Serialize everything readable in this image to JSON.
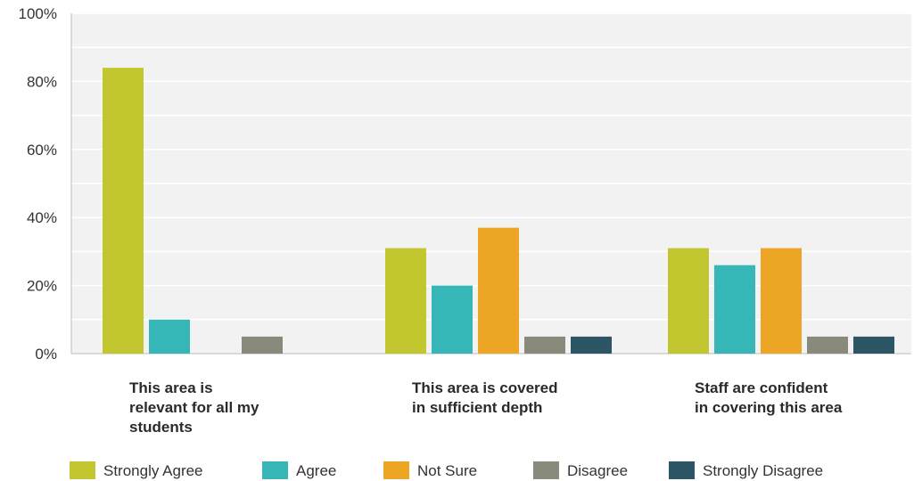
{
  "chart_data": {
    "type": "bar",
    "categories": [
      [
        "This area is",
        "relevant for all my",
        "students"
      ],
      [
        "This area is covered",
        "in sufficient depth"
      ],
      [
        "Staff are confident",
        "in covering this area"
      ]
    ],
    "series": [
      {
        "name": "Strongly Agree",
        "color": "#c2c72f",
        "values": [
          84,
          31,
          31
        ]
      },
      {
        "name": "Agree",
        "color": "#37b6b8",
        "values": [
          10,
          20,
          26
        ]
      },
      {
        "name": "Not Sure",
        "color": "#eda526",
        "values": [
          0,
          37,
          31
        ]
      },
      {
        "name": "Disagree",
        "color": "#8a8a7c",
        "values": [
          5,
          5,
          5
        ]
      },
      {
        "name": "Strongly Disagree",
        "color": "#2c5566",
        "values": [
          0,
          5,
          5
        ]
      }
    ],
    "y_ticks": [
      "0%",
      "20%",
      "40%",
      "60%",
      "80%",
      "100%"
    ],
    "ylim": [
      0,
      100
    ],
    "grid": true,
    "legend_position": "bottom",
    "plot_background": "#f2f2f2"
  }
}
